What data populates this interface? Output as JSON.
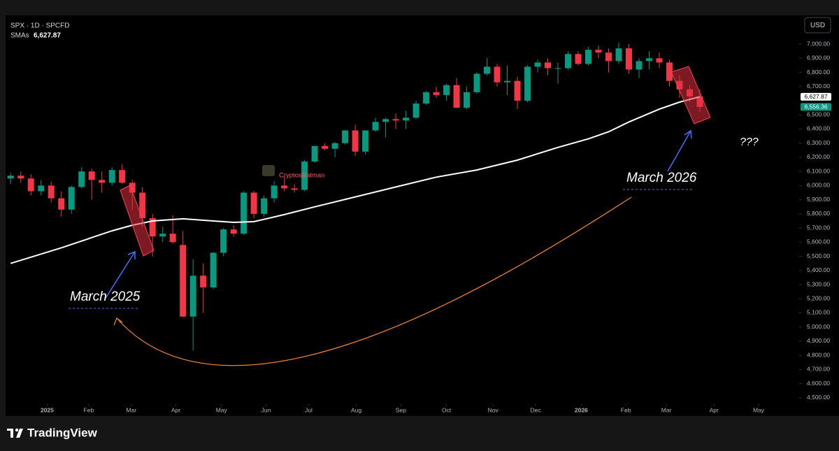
{
  "chart_data": {
    "type": "candlestick",
    "legend": {
      "symbol": "SPX · 1D · SPCFD",
      "sma_name": "SMAs",
      "sma_value": "6,627.87"
    },
    "currency": "USD",
    "brand": "TradingView",
    "watermark": "CryptosBatman",
    "annotations": {
      "left": "March 2025",
      "right": "March 2026",
      "question": "???"
    },
    "up_color": "#089981",
    "down_color": "#f23645",
    "sma_color": "#ffffff",
    "xlim": [
      -0.5,
      77.8
    ],
    "ylim": [
      4455,
      7203
    ],
    "xticks": [
      {
        "value": 3.6,
        "label": "2025"
      },
      {
        "value": 7.7,
        "label": "Feb"
      },
      {
        "value": 11.9,
        "label": "Mar"
      },
      {
        "value": 16.3,
        "label": "Apr"
      },
      {
        "value": 20.8,
        "label": "May"
      },
      {
        "value": 25.2,
        "label": "Jun"
      },
      {
        "value": 29.4,
        "label": "Jul"
      },
      {
        "value": 34.1,
        "label": "Aug"
      },
      {
        "value": 38.5,
        "label": "Sep"
      },
      {
        "value": 43.0,
        "label": "Oct"
      },
      {
        "value": 47.6,
        "label": "Nov"
      },
      {
        "value": 51.8,
        "label": "Dec"
      },
      {
        "value": 56.3,
        "label": "2026"
      },
      {
        "value": 60.7,
        "label": "Feb"
      },
      {
        "value": 64.7,
        "label": "Mar"
      },
      {
        "value": 69.4,
        "label": "Apr"
      },
      {
        "value": 73.8,
        "label": "May"
      }
    ],
    "yticks": [
      {
        "value": 4500,
        "label": "4,500.00"
      },
      {
        "value": 4600,
        "label": "4,600.00"
      },
      {
        "value": 4700,
        "label": "4,700.00"
      },
      {
        "value": 4800,
        "label": "4,800.00"
      },
      {
        "value": 4900,
        "label": "4,900.00"
      },
      {
        "value": 5000,
        "label": "5,000.00"
      },
      {
        "value": 5100,
        "label": "5,100.00"
      },
      {
        "value": 5200,
        "label": "5,200.00"
      },
      {
        "value": 5300,
        "label": "5,300.00"
      },
      {
        "value": 5400,
        "label": "5,400.00"
      },
      {
        "value": 5500,
        "label": "5,500.00"
      },
      {
        "value": 5600,
        "label": "5,600.00"
      },
      {
        "value": 5700,
        "label": "5,700.00"
      },
      {
        "value": 5800,
        "label": "5,800.00"
      },
      {
        "value": 5900,
        "label": "5,900.00"
      },
      {
        "value": 6000,
        "label": "6,000.00"
      },
      {
        "value": 6100,
        "label": "6,100.00"
      },
      {
        "value": 6200,
        "label": "6,200.00"
      },
      {
        "value": 6300,
        "label": "6,300.00"
      },
      {
        "value": 6400,
        "label": "6,400.00"
      },
      {
        "value": 6500,
        "label": "6,500.00"
      },
      {
        "value": 6700,
        "label": "6,700.00"
      },
      {
        "value": 6800,
        "label": "6,800.00"
      },
      {
        "value": 6900,
        "label": "6,900.00"
      },
      {
        "value": 7000,
        "label": "7,000.00"
      }
    ],
    "price_tags": [
      {
        "value": 6627.87,
        "label": "6,627.87",
        "bg": "#ffffff",
        "fg": "#000000"
      },
      {
        "value": 6556.36,
        "label": "6,556.36",
        "bg": "#089981",
        "fg": "#ffffff"
      }
    ],
    "candles": [
      [
        6050,
        6090,
        6010,
        6070
      ],
      [
        6070,
        6100,
        6020,
        6050
      ],
      [
        6050,
        6080,
        5930,
        5960
      ],
      [
        5960,
        6040,
        5930,
        6000
      ],
      [
        6000,
        6030,
        5880,
        5910
      ],
      [
        5910,
        5960,
        5780,
        5830
      ],
      [
        5830,
        6000,
        5800,
        5990
      ],
      [
        5990,
        6130,
        5980,
        6100
      ],
      [
        6100,
        6120,
        5900,
        6040
      ],
      [
        6040,
        6100,
        5950,
        6020
      ],
      [
        6020,
        6130,
        6000,
        6110
      ],
      [
        6110,
        6150,
        6010,
        6020
      ],
      [
        6020,
        6040,
        5830,
        5950
      ],
      [
        5950,
        5990,
        5710,
        5770
      ],
      [
        5770,
        5800,
        5500,
        5640
      ],
      [
        5640,
        5710,
        5600,
        5660
      ],
      [
        5660,
        5790,
        5590,
        5600
      ],
      [
        5580,
        5680,
        5070,
        5074
      ],
      [
        5074,
        5480,
        4835,
        5363
      ],
      [
        5363,
        5450,
        5100,
        5280
      ],
      [
        5280,
        5530,
        5270,
        5525
      ],
      [
        5525,
        5700,
        5500,
        5690
      ],
      [
        5690,
        5720,
        5640,
        5660
      ],
      [
        5660,
        5960,
        5650,
        5950
      ],
      [
        5950,
        5960,
        5770,
        5800
      ],
      [
        5800,
        5930,
        5780,
        5910
      ],
      [
        5910,
        6030,
        5880,
        6000
      ],
      [
        6000,
        6060,
        5960,
        5980
      ],
      [
        5980,
        6010,
        5950,
        5970
      ],
      [
        5970,
        6180,
        5960,
        6170
      ],
      [
        6170,
        6280,
        6160,
        6280
      ],
      [
        6280,
        6300,
        6250,
        6260
      ],
      [
        6260,
        6310,
        6200,
        6300
      ],
      [
        6300,
        6390,
        6290,
        6390
      ],
      [
        6390,
        6430,
        6210,
        6240
      ],
      [
        6240,
        6390,
        6220,
        6390
      ],
      [
        6390,
        6480,
        6380,
        6450
      ],
      [
        6450,
        6480,
        6340,
        6470
      ],
      [
        6470,
        6510,
        6400,
        6460
      ],
      [
        6460,
        6530,
        6400,
        6480
      ],
      [
        6480,
        6600,
        6470,
        6580
      ],
      [
        6580,
        6670,
        6570,
        6660
      ],
      [
        6660,
        6700,
        6620,
        6640
      ],
      [
        6640,
        6720,
        6600,
        6710
      ],
      [
        6710,
        6760,
        6550,
        6550
      ],
      [
        6550,
        6700,
        6540,
        6660
      ],
      [
        6660,
        6800,
        6650,
        6790
      ],
      [
        6790,
        6900,
        6780,
        6840
      ],
      [
        6840,
        6860,
        6700,
        6730
      ],
      [
        6730,
        6850,
        6640,
        6740
      ],
      [
        6740,
        6770,
        6540,
        6600
      ],
      [
        6600,
        6850,
        6590,
        6840
      ],
      [
        6840,
        6890,
        6800,
        6870
      ],
      [
        6870,
        6900,
        6780,
        6830
      ],
      [
        6830,
        6870,
        6720,
        6830
      ],
      [
        6830,
        6950,
        6820,
        6930
      ],
      [
        6930,
        6950,
        6850,
        6860
      ],
      [
        6860,
        6980,
        6850,
        6960
      ],
      [
        6960,
        6990,
        6900,
        6940
      ],
      [
        6940,
        6970,
        6800,
        6880
      ],
      [
        6880,
        7010,
        6860,
        6970
      ],
      [
        6970,
        7000,
        6790,
        6820
      ],
      [
        6820,
        6900,
        6760,
        6880
      ],
      [
        6880,
        6950,
        6820,
        6900
      ],
      [
        6900,
        6940,
        6830,
        6870
      ],
      [
        6870,
        6890,
        6700,
        6740
      ],
      [
        6740,
        6780,
        6620,
        6680
      ],
      [
        6680,
        6710,
        6590,
        6630
      ],
      [
        6630,
        6680,
        6520,
        6556.36
      ]
    ],
    "sma": {
      "x": [
        0,
        5,
        10,
        12,
        14,
        17,
        20,
        22,
        24,
        27,
        30,
        34,
        38,
        42,
        46,
        50,
        54,
        57,
        59,
        61,
        64,
        66,
        68
      ],
      "values": [
        5450,
        5560,
        5680,
        5720,
        5750,
        5765,
        5750,
        5740,
        5745,
        5795,
        5850,
        5920,
        5990,
        6060,
        6110,
        6180,
        6270,
        6330,
        6380,
        6450,
        6540,
        6590,
        6627.87
      ]
    }
  }
}
